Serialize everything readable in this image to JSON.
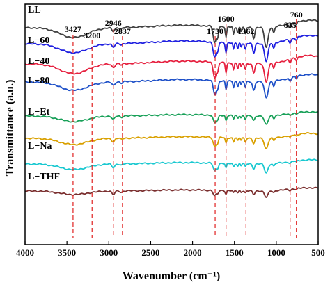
{
  "chart_data": {
    "type": "line",
    "xlabel": "Wavenumber (cm⁻¹)",
    "ylabel": "Transmittance (a.u.)",
    "xlim": [
      4000,
      500
    ],
    "x_reversed": true,
    "xticks": [
      "4000",
      "3500",
      "3000",
      "2500",
      "2000",
      "1500",
      "1000",
      "500"
    ],
    "grid": false,
    "peaks": [
      {
        "label": "3427",
        "x": 3427
      },
      {
        "label": "3200",
        "x": 3200
      },
      {
        "label": "2946",
        "x": 2946
      },
      {
        "label": "2837",
        "x": 2837
      },
      {
        "label": "1730",
        "x": 1730
      },
      {
        "label": "1600",
        "x": 1600
      },
      {
        "label": "1362",
        "x": 1362
      },
      {
        "label": "835",
        "x": 835
      },
      {
        "label": "760",
        "x": 760
      }
    ],
    "series": [
      {
        "name": "LL",
        "color": "#404040"
      },
      {
        "name": "L−60",
        "color": "#1f1fe0"
      },
      {
        "name": "L−40",
        "color": "#e6203f"
      },
      {
        "name": "L−80",
        "color": "#1e50c8"
      },
      {
        "name": "L−Et",
        "color": "#18a058"
      },
      {
        "name": "L−Na",
        "color": "#d9a000"
      },
      {
        "name": "L−THF",
        "color": "#18c8d0"
      },
      {
        "name": "",
        "color": "#7a2e2e"
      }
    ],
    "peak_line_color": "#e02020"
  }
}
